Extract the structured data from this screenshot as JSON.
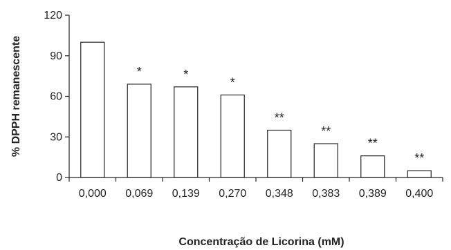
{
  "chart_data": {
    "type": "bar",
    "title": "",
    "xlabel": "Concentração de Licorina (mM)",
    "ylabel": "% DPPH remanescente",
    "categories": [
      "0,000",
      "0,069",
      "0,139",
      "0,270",
      "0,348",
      "0,383",
      "0,389",
      "0,400"
    ],
    "values": [
      100,
      69,
      67,
      61,
      35,
      25,
      16,
      5
    ],
    "significance": [
      "",
      "*",
      "*",
      "*",
      "**",
      "**",
      "**",
      "**"
    ],
    "ylim": [
      0,
      120
    ],
    "yticks": [
      0,
      30,
      60,
      90,
      120
    ],
    "ytick_labels": [
      "0",
      "30",
      "60",
      "90",
      "120"
    ],
    "grid": false,
    "legend": "none",
    "colors": {
      "bar_fill": "#ffffff",
      "bar_stroke": "#222222",
      "axis": "#222222",
      "text": "#222222"
    }
  }
}
